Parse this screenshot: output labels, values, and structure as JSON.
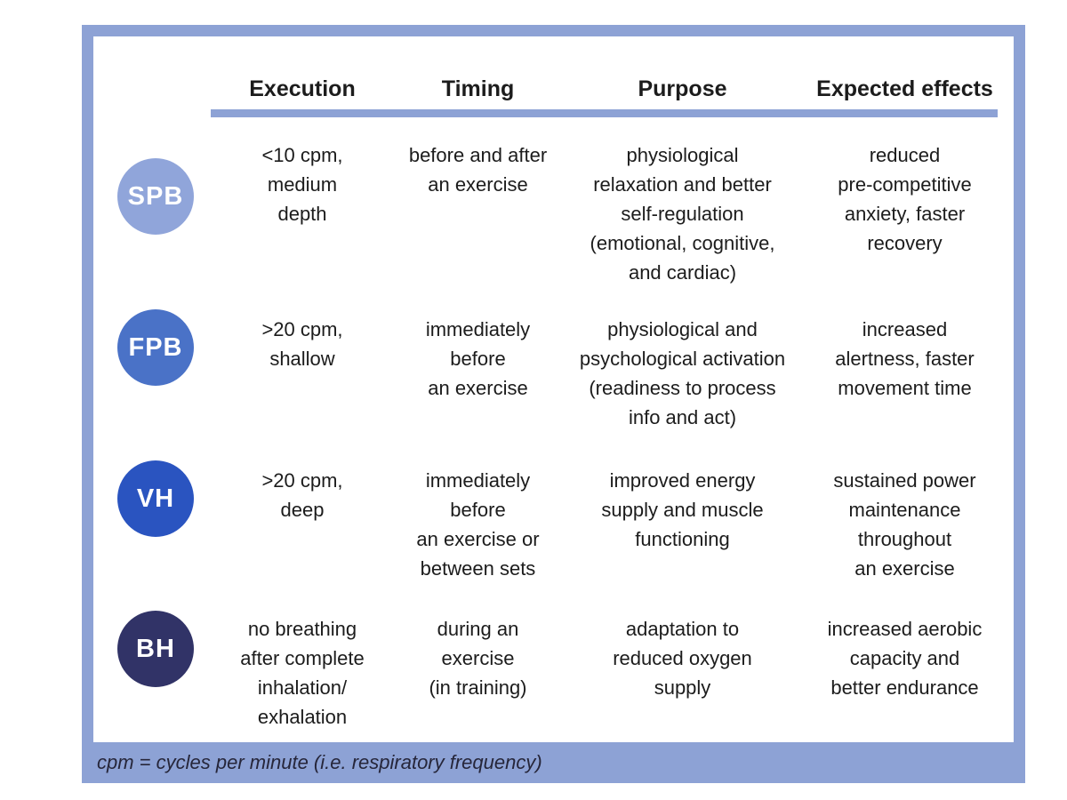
{
  "colors": {
    "frame": "#8da2d5"
  },
  "table": {
    "columns": [
      "Execution",
      "Timing",
      "Purpose",
      "Expected effects"
    ],
    "rows": [
      {
        "abbr": "SPB",
        "badge_color": "#90a5da",
        "execution": "<10 cpm,\nmedium\ndepth",
        "timing": "before and after\nan exercise",
        "purpose": "physiological\nrelaxation and better\nself-regulation\n(emotional, cognitive,\nand cardiac)",
        "effects": "reduced\npre-competitive\nanxiety, faster\nrecovery"
      },
      {
        "abbr": "FPB",
        "badge_color": "#4a72c7",
        "execution": ">20 cpm,\nshallow",
        "timing": "immediately\nbefore\nan exercise",
        "purpose": "physiological and\npsychological activation\n(readiness to process\ninfo and act)",
        "effects": "increased\nalertness, faster\nmovement time"
      },
      {
        "abbr": "VH",
        "badge_color": "#2a54c0",
        "execution": ">20 cpm,\ndeep",
        "timing": "immediately\nbefore\nan exercise or\nbetween sets",
        "purpose": "improved energy\nsupply and muscle\nfunctioning",
        "effects": "sustained power\nmaintenance\nthroughout\nan exercise"
      },
      {
        "abbr": "BH",
        "badge_color": "#313367",
        "execution": "no breathing\nafter complete\ninhalation/\nexhalation",
        "timing": "during an\nexercise\n(in training)",
        "purpose": "adaptation to\nreduced oxygen\nsupply",
        "effects": "increased aerobic\ncapacity and\nbetter endurance"
      }
    ]
  },
  "footnote": "cpm = cycles per minute (i.e. respiratory frequency)"
}
